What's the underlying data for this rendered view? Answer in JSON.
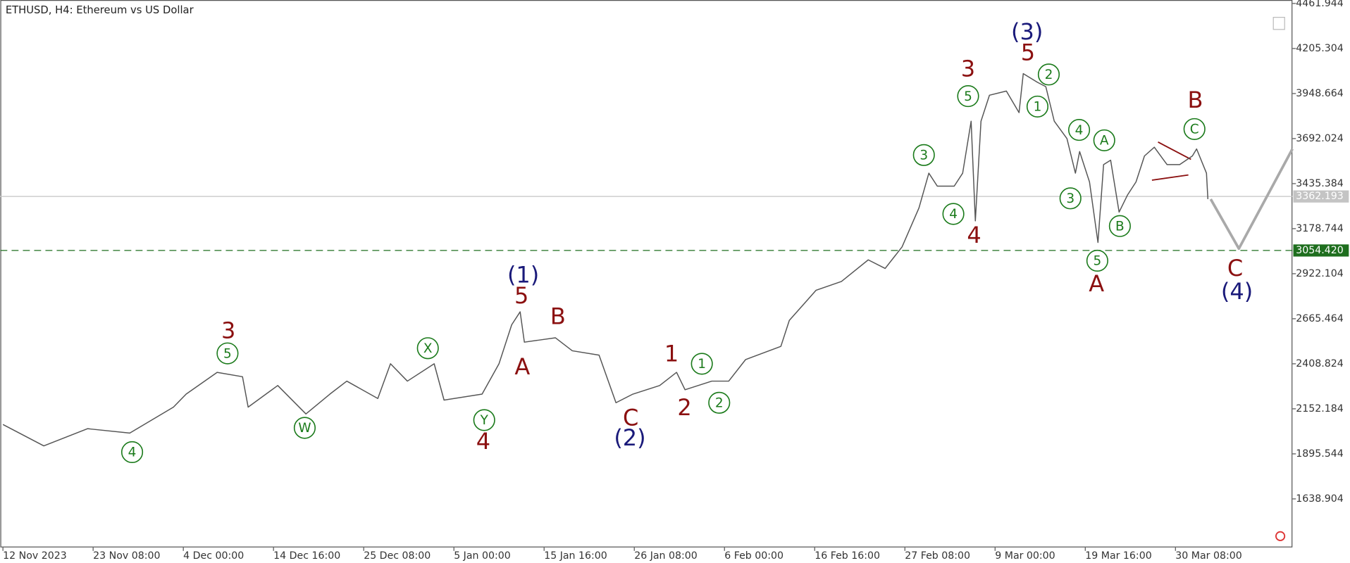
{
  "chart_data": {
    "type": "line",
    "title": "ETHUSD, H4:  Ethereum vs US Dollar",
    "xlim": [
      0,
      915
    ],
    "ylim": [
      1362.5,
      4481.7
    ],
    "xticks": [
      {
        "value": 0,
        "label": "12 Nov 2023"
      },
      {
        "value": 64,
        "label": "23 Nov 08:00"
      },
      {
        "value": 128,
        "label": "4 Dec 00:00"
      },
      {
        "value": 192,
        "label": "14 Dec 16:00"
      },
      {
        "value": 256,
        "label": "25 Dec 08:00"
      },
      {
        "value": 320,
        "label": "5 Jan 00:00"
      },
      {
        "value": 384,
        "label": "15 Jan 16:00"
      },
      {
        "value": 448,
        "label": "26 Jan 08:00"
      },
      {
        "value": 512,
        "label": "6 Feb 00:00"
      },
      {
        "value": 576,
        "label": "16 Feb 16:00"
      },
      {
        "value": 640,
        "label": "27 Feb 08:00"
      },
      {
        "value": 704,
        "label": "9 Mar 00:00"
      },
      {
        "value": 768,
        "label": "19 Mar 16:00"
      },
      {
        "value": 832,
        "label": "30 Mar 08:00"
      }
    ],
    "yticks": [
      4461.944,
      4205.304,
      3948.664,
      3692.024,
      3435.384,
      3178.744,
      2922.104,
      2665.464,
      2408.824,
      2152.184,
      1895.544,
      1638.904
    ],
    "series": [
      {
        "color": "#555555",
        "width": 1.2,
        "x": [
          0,
          29,
          60,
          90,
          121,
          130,
          152,
          170,
          174,
          195,
          215,
          232,
          244,
          266,
          275,
          287,
          306,
          313,
          340,
          352,
          361,
          367,
          370,
          392,
          404,
          423,
          435,
          447,
          466,
          478,
          484,
          503,
          515,
          527,
          552,
          558,
          577,
          595,
          614,
          626,
          638,
          650,
          657,
          663,
          675,
          681,
          687,
          690,
          694,
          700,
          712,
          721,
          724,
          734,
          740,
          746,
          755,
          761,
          764,
          771,
          777,
          781,
          786,
          792,
          798,
          804,
          810,
          817,
          826,
          835,
          844,
          847,
          854,
          855
        ],
        "values": [
          2063,
          1941,
          2039,
          2014,
          2162,
          2236,
          2360,
          2335,
          2162,
          2285,
          2123,
          2236,
          2310,
          2211,
          2409,
          2310,
          2409,
          2202,
          2236,
          2409,
          2631,
          2705,
          2532,
          2557,
          2483,
          2458,
          2187,
          2236,
          2285,
          2360,
          2261,
          2310,
          2310,
          2433,
          2508,
          2656,
          2828,
          2878,
          3001,
          2952,
          3075,
          3297,
          3495,
          3421,
          3421,
          3495,
          3791,
          3223,
          3791,
          3939,
          3963,
          3840,
          4062,
          4013,
          3988,
          3791,
          3692,
          3495,
          3618,
          3445,
          3100,
          3544,
          3569,
          3273,
          3371,
          3445,
          3593,
          3643,
          3544,
          3544,
          3593,
          3633,
          3495,
          3347
        ]
      },
      {
        "color": "#a9a9a9",
        "width": 3,
        "x": [
          857,
          877,
          915
        ],
        "values": [
          3347,
          3065,
          3633
        ]
      }
    ],
    "hlines": [
      {
        "value": 3362.193,
        "label": "3362.193",
        "color": "#c4c4c4",
        "dashed": false
      },
      {
        "value": 3054.42,
        "label": "3054.420",
        "color": "#1e6e1e",
        "dashed": true
      }
    ],
    "annotations": [
      {
        "text": "(3)",
        "color": "#1a1a7a",
        "circled": false
      },
      {
        "text": "(1)",
        "color": "#1a1a7a",
        "circled": false
      },
      {
        "text": "(2)",
        "color": "#1a1a7a",
        "circled": false
      },
      {
        "text": "(4)",
        "color": "#1a1a7a",
        "circled": false
      },
      {
        "text": "3",
        "color": "#8b1010",
        "circled": false
      },
      {
        "text": "5",
        "color": "#8b1010",
        "circled": false
      },
      {
        "text": "3",
        "color": "#8b1010",
        "circled": false
      },
      {
        "text": "5",
        "color": "#8b1010",
        "circled": false
      },
      {
        "text": "A",
        "color": "#8b1010",
        "circled": false
      },
      {
        "text": "B",
        "color": "#8b1010",
        "circled": false
      },
      {
        "text": "4",
        "color": "#8b1010",
        "circled": false
      },
      {
        "text": "C",
        "color": "#8b1010",
        "circled": false
      },
      {
        "text": "1",
        "color": "#8b1010",
        "circled": false
      },
      {
        "text": "2",
        "color": "#8b1010",
        "circled": false
      },
      {
        "text": "4",
        "color": "#8b1010",
        "circled": false
      },
      {
        "text": "A",
        "color": "#8b1010",
        "circled": false
      },
      {
        "text": "B",
        "color": "#8b1010",
        "circled": false
      },
      {
        "text": "C",
        "color": "#8b1010",
        "circled": false
      },
      {
        "text": "5",
        "color": "#1a7a1a",
        "circled": true
      },
      {
        "text": "2",
        "color": "#1a7a1a",
        "circled": true
      },
      {
        "text": "1",
        "color": "#1a7a1a",
        "circled": true
      },
      {
        "text": "3",
        "color": "#1a7a1a",
        "circled": true
      },
      {
        "text": "4",
        "color": "#1a7a1a",
        "circled": true
      },
      {
        "text": "4",
        "color": "#1a7a1a",
        "circled": true
      },
      {
        "text": "A",
        "color": "#1a7a1a",
        "circled": true
      },
      {
        "text": "3",
        "color": "#1a7a1a",
        "circled": true
      },
      {
        "text": "B",
        "color": "#1a7a1a",
        "circled": true
      },
      {
        "text": "5",
        "color": "#1a7a1a",
        "circled": true
      },
      {
        "text": "C",
        "color": "#1a7a1a",
        "circled": true
      },
      {
        "text": "5",
        "color": "#1a7a1a",
        "circled": true
      },
      {
        "text": "W",
        "color": "#1a7a1a",
        "circled": true
      },
      {
        "text": "X",
        "color": "#1a7a1a",
        "circled": true
      },
      {
        "text": "Y",
        "color": "#1a7a1a",
        "circled": true
      },
      {
        "text": "4",
        "color": "#1a7a1a",
        "circled": true
      },
      {
        "text": "1",
        "color": "#1a7a1a",
        "circled": true
      },
      {
        "text": "2",
        "color": "#1a7a1a",
        "circled": true
      }
    ]
  }
}
